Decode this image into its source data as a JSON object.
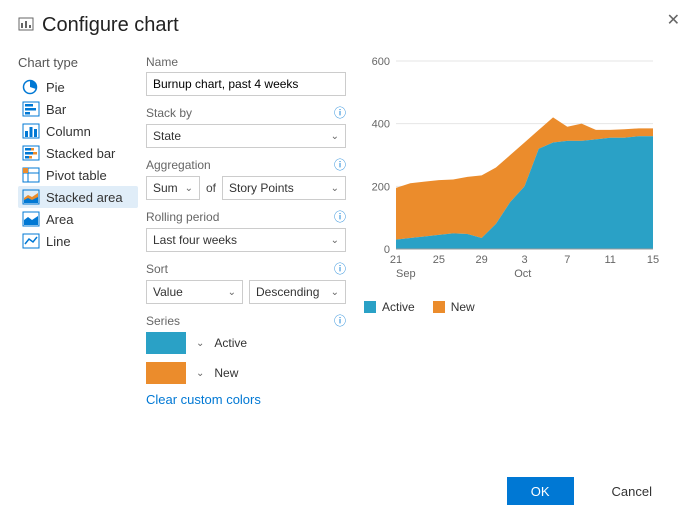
{
  "title": "Configure chart",
  "chart_type_label": "Chart type",
  "types": [
    {
      "key": "pie",
      "label": "Pie"
    },
    {
      "key": "bar",
      "label": "Bar"
    },
    {
      "key": "column",
      "label": "Column"
    },
    {
      "key": "stacked-bar",
      "label": "Stacked bar"
    },
    {
      "key": "pivot-table",
      "label": "Pivot table"
    },
    {
      "key": "stacked-area",
      "label": "Stacked area"
    },
    {
      "key": "area",
      "label": "Area"
    },
    {
      "key": "line",
      "label": "Line"
    }
  ],
  "selected_type": "stacked-area",
  "form": {
    "name_label": "Name",
    "name_value": "Burnup chart, past 4 weeks",
    "stack_by_label": "Stack by",
    "stack_by_value": "State",
    "aggregation_label": "Aggregation",
    "aggregation_value": "Sum",
    "of_label": "of",
    "aggregation_field": "Story Points",
    "rolling_label": "Rolling period",
    "rolling_value": "Last four weeks",
    "sort_label": "Sort",
    "sort_field": "Value",
    "sort_dir": "Descending",
    "series_label": "Series",
    "series": [
      {
        "label": "Active",
        "color": "#2aa1c6"
      },
      {
        "label": "New",
        "color": "#eb8c2c"
      }
    ],
    "clear_link": "Clear custom colors"
  },
  "preview_chart": {
    "type": "stacked-area",
    "ylim": [
      0,
      600
    ],
    "ytick_step": 200,
    "grid_color": "#e6e6e6",
    "axis_color": "#999",
    "label_color": "#666",
    "label_fontsize": 11,
    "background": "#ffffff",
    "x_labels": [
      "21",
      "25",
      "29",
      "3",
      "7",
      "11",
      "15"
    ],
    "x_group_labels": [
      "Sep",
      "Oct"
    ],
    "series": [
      {
        "name": "Active",
        "color": "#2aa1c6",
        "values": [
          30,
          35,
          40,
          45,
          50,
          48,
          35,
          80,
          150,
          200,
          320,
          340,
          345,
          345,
          350,
          355,
          355,
          360,
          360
        ]
      },
      {
        "name": "New",
        "color": "#eb8c2c",
        "values": [
          195,
          210,
          215,
          220,
          222,
          230,
          235,
          260,
          300,
          340,
          380,
          420,
          390,
          400,
          380,
          380,
          382,
          385,
          385
        ]
      }
    ],
    "legend": [
      {
        "label": "Active",
        "color": "#2aa1c6"
      },
      {
        "label": "New",
        "color": "#eb8c2c"
      }
    ]
  },
  "buttons": {
    "ok": "OK",
    "cancel": "Cancel"
  }
}
